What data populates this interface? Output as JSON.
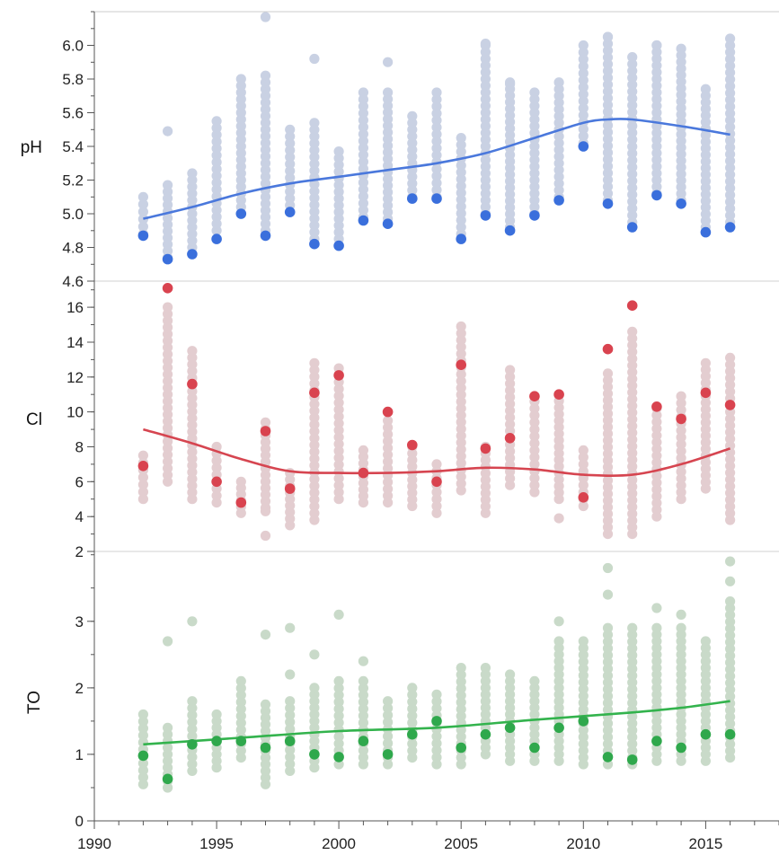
{
  "chart_data": {
    "type": "scatter",
    "x_axis": {
      "range": [
        1990,
        2018
      ],
      "ticks": [
        1990,
        1995,
        2000,
        2005,
        2010,
        2015
      ],
      "tick_labels": [
        "1990",
        "1995",
        "2000",
        "2005",
        "2010",
        "2015"
      ]
    },
    "panels": [
      {
        "ylabel": "pH",
        "ylim": [
          4.6,
          6.2
        ],
        "yticks": [
          4.6,
          4.8,
          5.0,
          5.2,
          5.4,
          5.6,
          5.8,
          6.0
        ],
        "ytick_labels": [
          "4.6",
          "4.8",
          "5.0",
          "5.2",
          "5.4",
          "5.6",
          "5.8",
          "6.0"
        ],
        "raw_color": "#c9d1e3",
        "highlight_color": "#3a6fdc",
        "trend_color": "#4a78dc",
        "raw_ranges": [
          [
            1992,
            4.88,
            5.1
          ],
          [
            1993,
            4.74,
            5.17
          ],
          [
            1994,
            4.8,
            5.24
          ],
          [
            1995,
            4.9,
            5.55
          ],
          [
            1996,
            5.0,
            5.8
          ],
          [
            1997,
            4.9,
            5.82
          ],
          [
            1998,
            5.05,
            5.5
          ],
          [
            1999,
            4.85,
            5.54
          ],
          [
            2000,
            4.85,
            5.37
          ],
          [
            2001,
            4.98,
            5.72
          ],
          [
            2002,
            4.97,
            5.72
          ],
          [
            2003,
            5.1,
            5.58
          ],
          [
            2004,
            5.1,
            5.72
          ],
          [
            2005,
            4.88,
            5.45
          ],
          [
            2006,
            5.0,
            6.0
          ],
          [
            2007,
            4.92,
            5.78
          ],
          [
            2008,
            5.0,
            5.72
          ],
          [
            2009,
            5.1,
            5.78
          ],
          [
            2010,
            5.42,
            6.0
          ],
          [
            2011,
            5.08,
            6.05
          ],
          [
            2012,
            4.95,
            5.93
          ],
          [
            2013,
            5.12,
            6.0
          ],
          [
            2014,
            5.08,
            5.98
          ],
          [
            2015,
            4.92,
            5.74
          ],
          [
            2016,
            4.95,
            6.04
          ]
        ],
        "outliers": [
          [
            1993,
            5.49
          ],
          [
            1997,
            6.19
          ],
          [
            1999,
            5.92
          ],
          [
            2002,
            5.9
          ],
          [
            2006,
            6.01
          ],
          [
            2007,
            5.77
          ],
          [
            2011,
            6.05
          ],
          [
            2013,
            6.0
          ]
        ],
        "highlighted": [
          [
            1992,
            4.87
          ],
          [
            1993,
            4.73
          ],
          [
            1994,
            4.76
          ],
          [
            1995,
            4.85
          ],
          [
            1996,
            5.0
          ],
          [
            1997,
            4.87
          ],
          [
            1998,
            5.01
          ],
          [
            1999,
            4.82
          ],
          [
            2000,
            4.81
          ],
          [
            2001,
            4.96
          ],
          [
            2002,
            4.94
          ],
          [
            2003,
            5.09
          ],
          [
            2004,
            5.09
          ],
          [
            2005,
            4.85
          ],
          [
            2006,
            4.99
          ],
          [
            2007,
            4.9
          ],
          [
            2008,
            4.99
          ],
          [
            2009,
            5.08
          ],
          [
            2010,
            5.4
          ],
          [
            2011,
            5.06
          ],
          [
            2012,
            4.92
          ],
          [
            2013,
            5.11
          ],
          [
            2014,
            5.06
          ],
          [
            2015,
            4.89
          ],
          [
            2016,
            4.92
          ]
        ],
        "trend": [
          [
            1992,
            4.97
          ],
          [
            1994,
            5.04
          ],
          [
            1996,
            5.12
          ],
          [
            1998,
            5.18
          ],
          [
            2000,
            5.22
          ],
          [
            2002,
            5.26
          ],
          [
            2004,
            5.3
          ],
          [
            2006,
            5.36
          ],
          [
            2008,
            5.45
          ],
          [
            2010,
            5.54
          ],
          [
            2011,
            5.56
          ],
          [
            2012,
            5.56
          ],
          [
            2014,
            5.52
          ],
          [
            2016,
            5.47
          ]
        ]
      },
      {
        "ylabel": "Cl",
        "ylim": [
          2,
          17.5
        ],
        "yticks": [
          2,
          4,
          6,
          8,
          10,
          12,
          14,
          16
        ],
        "ytick_labels": [
          "2",
          "4",
          "6",
          "8",
          "10",
          "12",
          "14",
          "16"
        ],
        "raw_color": "#e3cdd0",
        "highlight_color": "#d9434f",
        "trend_color": "#d64550",
        "raw_ranges": [
          [
            1992,
            5.0,
            7.5
          ],
          [
            1993,
            6.0,
            16.0
          ],
          [
            1994,
            5.0,
            13.5
          ],
          [
            1995,
            4.8,
            8.0
          ],
          [
            1996,
            4.2,
            6.0
          ],
          [
            1997,
            4.5,
            9.4
          ],
          [
            1998,
            3.5,
            6.5
          ],
          [
            1999,
            3.8,
            12.8
          ],
          [
            2000,
            5.0,
            12.5
          ],
          [
            2001,
            4.8,
            7.8
          ],
          [
            2002,
            4.8,
            9.5
          ],
          [
            2003,
            4.6,
            8.0
          ],
          [
            2004,
            4.2,
            7.0
          ],
          [
            2005,
            5.5,
            14.9
          ],
          [
            2006,
            4.2,
            8.0
          ],
          [
            2007,
            5.8,
            12.4
          ],
          [
            2008,
            5.4,
            10.6
          ],
          [
            2009,
            5.0,
            11.0
          ],
          [
            2010,
            4.6,
            7.8
          ],
          [
            2011,
            3.0,
            12.2
          ],
          [
            2012,
            3.0,
            14.6
          ],
          [
            2013,
            4.0,
            10.2
          ],
          [
            2014,
            5.0,
            10.9
          ],
          [
            2015,
            5.6,
            12.8
          ],
          [
            2016,
            3.8,
            13.1
          ]
        ],
        "outliers": [
          [
            1997,
            2.9
          ],
          [
            1997,
            4.3
          ],
          [
            2009,
            3.9
          ]
        ],
        "highlighted": [
          [
            1992,
            6.9
          ],
          [
            1993,
            17.1
          ],
          [
            1994,
            11.6
          ],
          [
            1995,
            6.0
          ],
          [
            1996,
            4.8
          ],
          [
            1997,
            8.9
          ],
          [
            1998,
            5.6
          ],
          [
            1999,
            11.1
          ],
          [
            2000,
            12.1
          ],
          [
            2001,
            6.5
          ],
          [
            2002,
            10.0
          ],
          [
            2003,
            8.1
          ],
          [
            2004,
            6.0
          ],
          [
            2005,
            12.7
          ],
          [
            2006,
            7.9
          ],
          [
            2007,
            8.5
          ],
          [
            2008,
            10.9
          ],
          [
            2009,
            11.0
          ],
          [
            2010,
            5.1
          ],
          [
            2011,
            13.6
          ],
          [
            2012,
            16.1
          ],
          [
            2013,
            10.3
          ],
          [
            2014,
            9.6
          ],
          [
            2015,
            11.1
          ],
          [
            2016,
            10.4
          ]
        ],
        "trend": [
          [
            1992,
            9.0
          ],
          [
            1994,
            8.2
          ],
          [
            1996,
            7.3
          ],
          [
            1998,
            6.6
          ],
          [
            2000,
            6.5
          ],
          [
            2002,
            6.5
          ],
          [
            2004,
            6.6
          ],
          [
            2006,
            6.8
          ],
          [
            2008,
            6.7
          ],
          [
            2010,
            6.4
          ],
          [
            2012,
            6.4
          ],
          [
            2014,
            7.0
          ],
          [
            2016,
            7.9
          ]
        ]
      },
      {
        "ylabel": "TO",
        "ylim": [
          0,
          4.05
        ],
        "yticks": [
          0,
          1,
          2,
          3
        ],
        "ytick_labels": [
          "0",
          "1",
          "2",
          "3"
        ],
        "raw_color": "#c9dac9",
        "highlight_color": "#2fa84c",
        "trend_color": "#33b34d",
        "raw_ranges": [
          [
            1992,
            0.55,
            1.6
          ],
          [
            1993,
            0.5,
            1.4
          ],
          [
            1994,
            0.75,
            1.8
          ],
          [
            1995,
            0.8,
            1.6
          ],
          [
            1996,
            0.95,
            2.1
          ],
          [
            1997,
            0.55,
            1.75
          ],
          [
            1998,
            0.75,
            1.8
          ],
          [
            1999,
            0.8,
            2.0
          ],
          [
            2000,
            0.85,
            2.1
          ],
          [
            2001,
            0.85,
            2.1
          ],
          [
            2002,
            0.85,
            1.8
          ],
          [
            2003,
            0.95,
            2.0
          ],
          [
            2004,
            0.85,
            1.9
          ],
          [
            2005,
            0.85,
            2.3
          ],
          [
            2006,
            1.0,
            2.3
          ],
          [
            2007,
            0.9,
            2.2
          ],
          [
            2008,
            0.9,
            2.1
          ],
          [
            2009,
            0.9,
            2.7
          ],
          [
            2010,
            0.85,
            2.7
          ],
          [
            2011,
            0.85,
            2.9
          ],
          [
            2012,
            0.85,
            2.9
          ],
          [
            2013,
            0.9,
            2.9
          ],
          [
            2014,
            0.9,
            2.9
          ],
          [
            2015,
            0.9,
            2.6
          ],
          [
            2016,
            0.95,
            3.3
          ]
        ],
        "outliers": [
          [
            1993,
            2.7
          ],
          [
            1994,
            3.0
          ],
          [
            1997,
            2.8
          ],
          [
            1998,
            2.2
          ],
          [
            1998,
            2.9
          ],
          [
            1999,
            2.5
          ],
          [
            2000,
            3.1
          ],
          [
            2001,
            2.4
          ],
          [
            2009,
            3.0
          ],
          [
            2011,
            3.4
          ],
          [
            2011,
            3.8
          ],
          [
            2013,
            3.2
          ],
          [
            2014,
            3.1
          ],
          [
            2015,
            2.7
          ],
          [
            2016,
            3.6
          ],
          [
            2016,
            3.9
          ]
        ],
        "highlighted": [
          [
            1992,
            0.98
          ],
          [
            1993,
            0.63
          ],
          [
            1994,
            1.15
          ],
          [
            1995,
            1.2
          ],
          [
            1996,
            1.2
          ],
          [
            1997,
            1.1
          ],
          [
            1998,
            1.2
          ],
          [
            1999,
            1.0
          ],
          [
            2000,
            0.96
          ],
          [
            2001,
            1.2
          ],
          [
            2002,
            1.0
          ],
          [
            2003,
            1.3
          ],
          [
            2004,
            1.5
          ],
          [
            2005,
            1.1
          ],
          [
            2006,
            1.3
          ],
          [
            2007,
            1.4
          ],
          [
            2008,
            1.1
          ],
          [
            2009,
            1.4
          ],
          [
            2010,
            1.5
          ],
          [
            2011,
            0.96
          ],
          [
            2012,
            0.92
          ],
          [
            2013,
            1.2
          ],
          [
            2014,
            1.1
          ],
          [
            2015,
            1.3
          ],
          [
            2016,
            1.3
          ]
        ],
        "trend": [
          [
            1992,
            1.15
          ],
          [
            1996,
            1.25
          ],
          [
            2000,
            1.35
          ],
          [
            2004,
            1.4
          ],
          [
            2008,
            1.52
          ],
          [
            2012,
            1.63
          ],
          [
            2014,
            1.7
          ],
          [
            2016,
            1.8
          ]
        ]
      }
    ]
  }
}
